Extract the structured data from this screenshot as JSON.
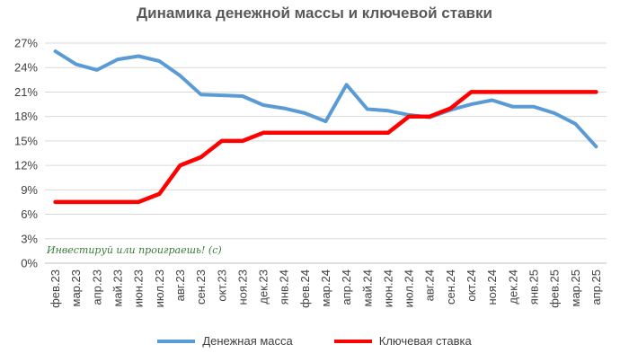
{
  "chart_data": {
    "type": "line",
    "title": "Динамика денежной массы и ключевой ставки",
    "categories": [
      "фев.23",
      "мар.23",
      "апр.23",
      "май.23",
      "июн.23",
      "июл.23",
      "авг.23",
      "сен.23",
      "окт.23",
      "ноя.23",
      "дек.23",
      "янв.24",
      "фев.24",
      "мар.24",
      "апр.24",
      "май.24",
      "июн.24",
      "июл.24",
      "авг.24",
      "сен.24",
      "окт.24",
      "ноя.24",
      "дек.24",
      "янв.25",
      "фев.25",
      "мар.25",
      "апр.25"
    ],
    "y_ticks": [
      "0%",
      "3%",
      "6%",
      "9%",
      "12%",
      "15%",
      "18%",
      "21%",
      "24%",
      "27%"
    ],
    "ylim": [
      0,
      27
    ],
    "grid": true,
    "legend_position": "bottom",
    "annotation": "Инвестируй или проиграешь! (с)",
    "series": [
      {
        "name": "Денежная масса",
        "color": "#5B9BD5",
        "values": [
          26.0,
          24.4,
          23.7,
          25.0,
          25.4,
          24.8,
          23.0,
          20.7,
          20.6,
          20.5,
          19.4,
          19.0,
          18.4,
          17.4,
          21.9,
          18.9,
          18.7,
          18.2,
          17.9,
          18.8,
          19.5,
          20.0,
          19.2,
          19.2,
          18.4,
          17.1,
          14.3
        ]
      },
      {
        "name": "Ключевая ставка",
        "color": "#FF0000",
        "values": [
          7.5,
          7.5,
          7.5,
          7.5,
          7.5,
          8.5,
          12.0,
          13.0,
          15.0,
          15.0,
          16.0,
          16.0,
          16.0,
          16.0,
          16.0,
          16.0,
          16.0,
          18.0,
          18.0,
          19.0,
          21.0,
          21.0,
          21.0,
          21.0,
          21.0,
          21.0,
          21.0
        ]
      }
    ]
  }
}
